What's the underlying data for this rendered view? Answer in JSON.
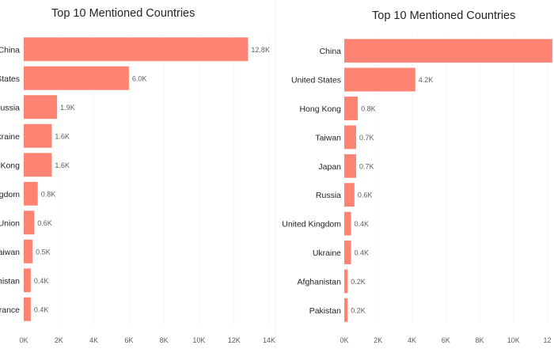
{
  "chart_data": [
    {
      "type": "bar",
      "orientation": "horizontal",
      "title": "Top 10 Mentioned Countries",
      "categories": [
        "China",
        "States",
        "Russia",
        "kraine",
        "Kong",
        "gdom",
        "Union",
        "aiwan",
        "anistan",
        "rance"
      ],
      "values": [
        12.8,
        6.0,
        1.9,
        1.6,
        1.6,
        0.8,
        0.6,
        0.5,
        0.4,
        0.4
      ],
      "value_labels": [
        "12.8K",
        "6.0K",
        "1.9K",
        "1.6K",
        "1.6K",
        "0.8K",
        "0.6K",
        "0.5K",
        "0.4K",
        "0.4K"
      ],
      "xlim": [
        0,
        14
      ],
      "xticks": [
        0,
        2,
        4,
        6,
        8,
        10,
        12,
        14
      ],
      "xtick_labels": [
        "0K",
        "2K",
        "4K",
        "6K",
        "8K",
        "10K",
        "12K",
        "14K"
      ],
      "grid": true,
      "bar_color": "#fd8472"
    },
    {
      "type": "bar",
      "orientation": "horizontal",
      "title": "Top 10 Mentioned Countries",
      "categories": [
        "China",
        "United States",
        "Hong Kong",
        "Taiwan",
        "Japan",
        "Russia",
        "United Kingdom",
        "Ukraine",
        "Afghanistan",
        "Pakistan"
      ],
      "values": [
        12.3,
        4.2,
        0.8,
        0.7,
        0.7,
        0.6,
        0.4,
        0.4,
        0.2,
        0.2
      ],
      "value_labels": [
        "",
        "4.2K",
        "0.8K",
        "0.7K",
        "0.7K",
        "0.6K",
        "0.4K",
        "0.4K",
        "0.2K",
        "0.2K"
      ],
      "xlim": [
        0,
        12.4
      ],
      "xticks": [
        0,
        2,
        4,
        6,
        8,
        10,
        12
      ],
      "xtick_labels": [
        "0K",
        "2K",
        "4K",
        "6K",
        "8K",
        "10K",
        "12"
      ],
      "grid": true,
      "bar_color": "#fd8472"
    }
  ]
}
